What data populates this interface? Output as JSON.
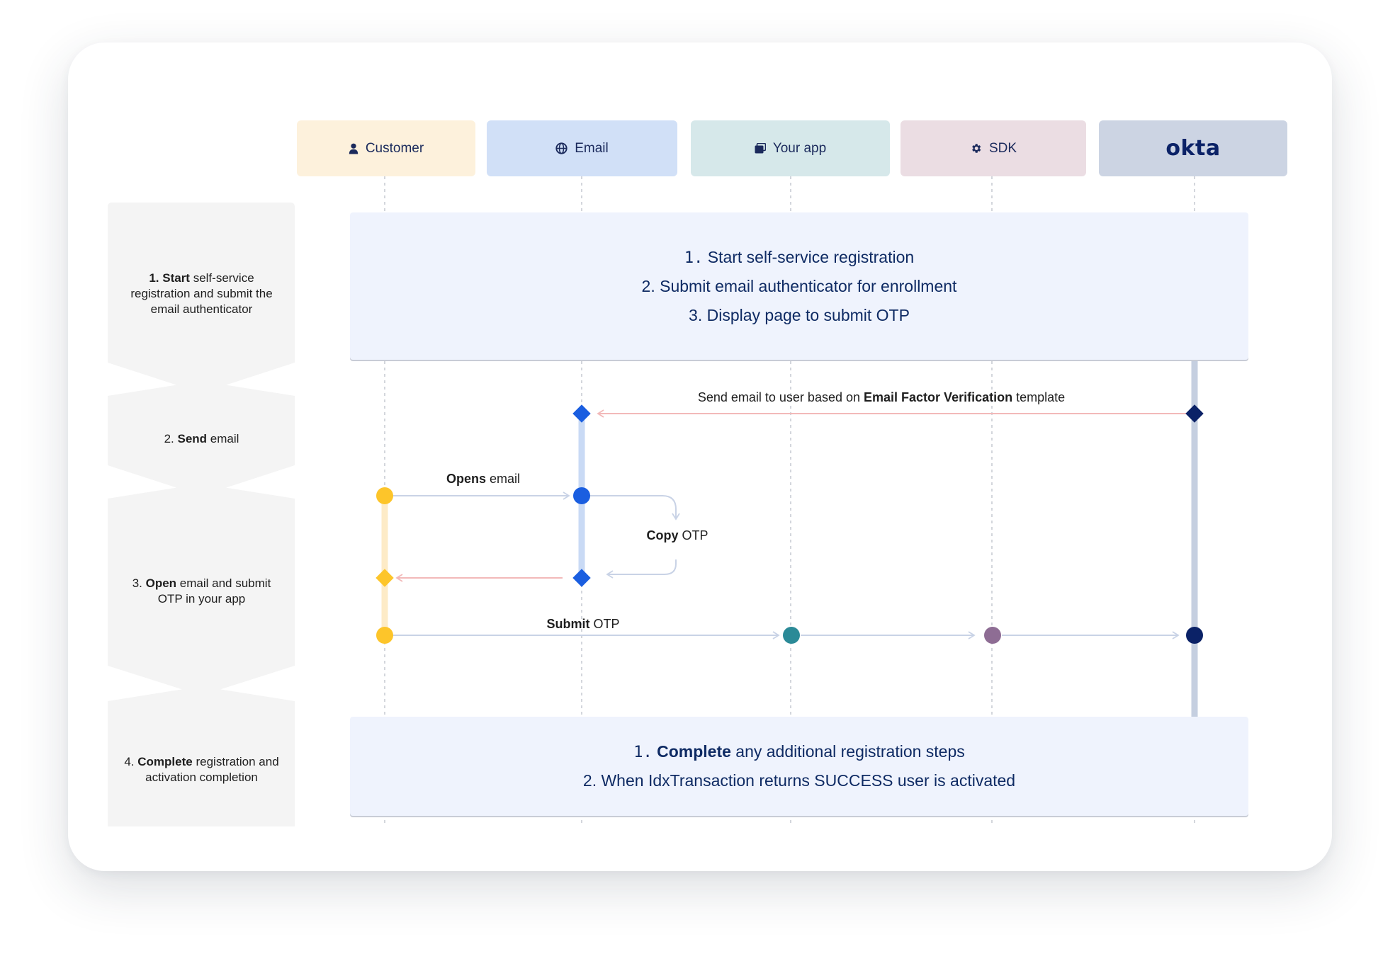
{
  "lanes": [
    {
      "label": "Customer",
      "icon": "person-icon",
      "color": "#fdf1dc"
    },
    {
      "label": "Email",
      "icon": "globe-icon",
      "color": "#d1e0f7"
    },
    {
      "label": "Your app",
      "icon": "app-icon",
      "color": "#d6e8ea"
    },
    {
      "label": "SDK",
      "icon": "gear-icon",
      "color": "#ebdde3"
    },
    {
      "label": "okta",
      "icon": "okta-logo",
      "color": "#ccd4e3"
    }
  ],
  "steps": [
    {
      "num": "1.",
      "bold": "Start",
      "text": "self-service registration and submit the email authenticator"
    },
    {
      "num": "2.",
      "bold": "Send",
      "text": "email"
    },
    {
      "num": "3.",
      "bold": "Open",
      "text": "email and submit OTP in your app"
    },
    {
      "num": "4.",
      "bold": "Complete",
      "text": "registration and activation completion"
    }
  ],
  "panel_top": {
    "line1_num": "1.",
    "line1_text": "Start self-service registration",
    "line2": "2. Submit email authenticator for enrollment",
    "line3": "3. Display page to submit OTP"
  },
  "panel_bottom": {
    "line1_num": "1.",
    "line1_bold": "Complete",
    "line1_text": "any additional registration steps",
    "line2": "2. When IdxTransaction returns SUCCESS user is activated"
  },
  "messages": {
    "send_email_prefix": "Send email to user based on",
    "send_email_bold": "Email Factor Verification",
    "send_email_suffix": "template",
    "opens_bold": "Opens",
    "opens_text": "email",
    "copy_bold": "Copy",
    "copy_text": "OTP",
    "submit_bold": "Submit",
    "submit_text": "OTP"
  },
  "colors": {
    "customer": "#fdc52a",
    "email": "#1a5ee0",
    "app": "#2b8a97",
    "sdk": "#8e6d94",
    "okta": "#0b2267",
    "return_arrow": "#f2b9b9",
    "forward_arrow": "#c9d3e6"
  }
}
